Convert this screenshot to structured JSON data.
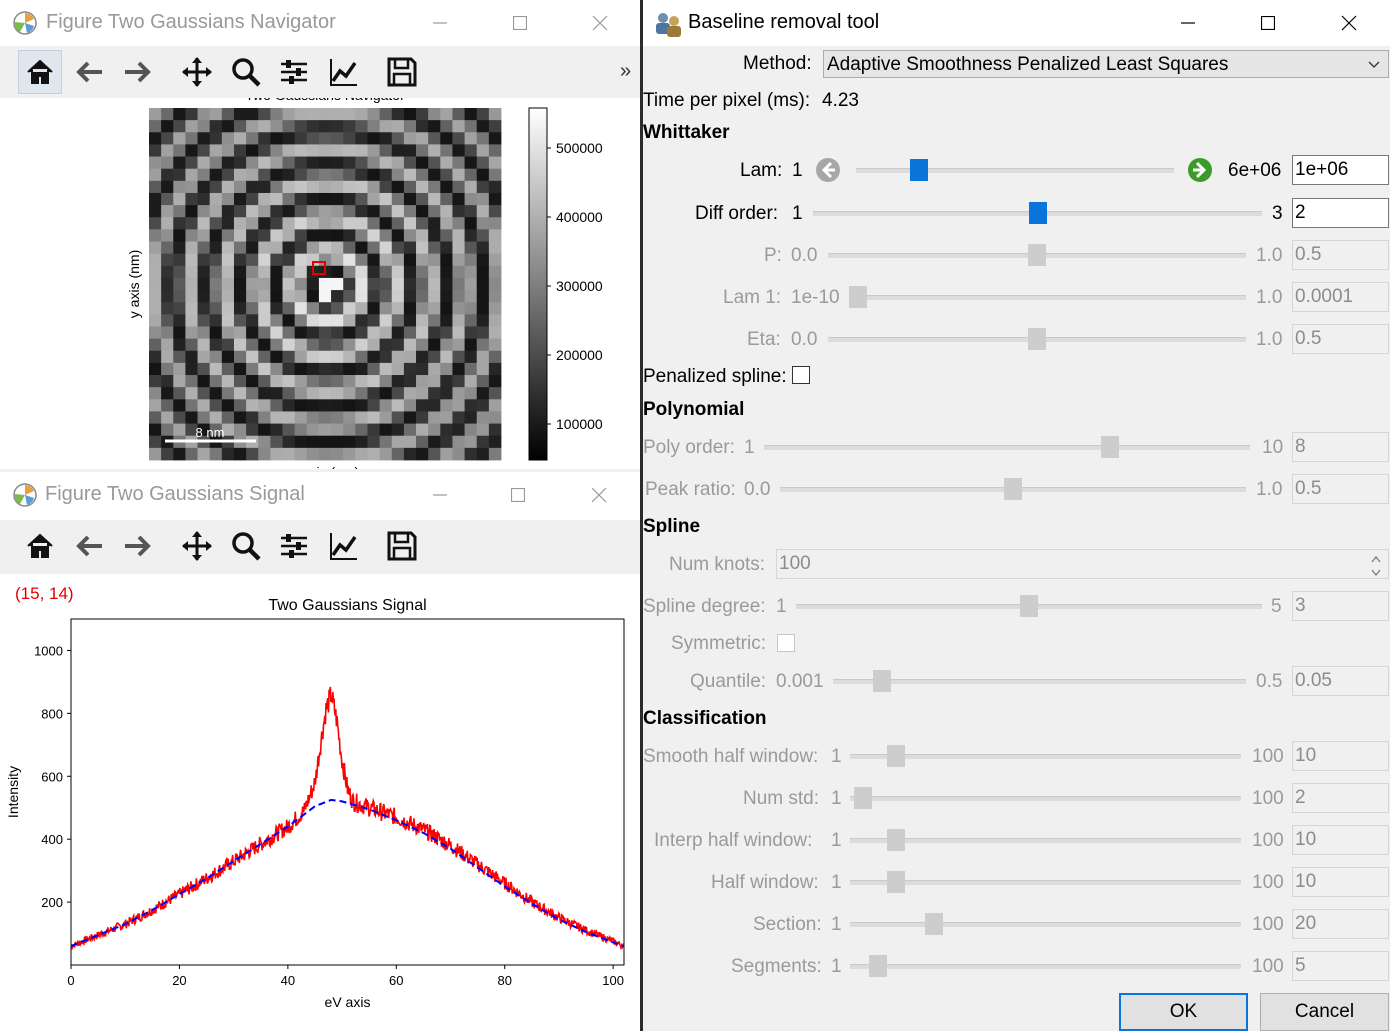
{
  "navigator": {
    "title": "Figure Two Gaussians Navigator",
    "plot_title": "Two Gaussians Navigator",
    "ylabel": "y axis (nm)",
    "xlabel": "x axis (nm)",
    "scalebar": "8 nm",
    "colorbar_ticks": [
      "500000",
      "400000",
      "300000",
      "200000",
      "100000"
    ],
    "more": "»",
    "toolbar": [
      "home-icon",
      "back-arrow-icon",
      "forward-arrow-icon",
      "pan-icon",
      "zoom-icon",
      "configure-subplots-icon",
      "edit-axis-icon",
      "save-icon"
    ]
  },
  "signal": {
    "title": "Figure Two Gaussians Signal",
    "coords": "(15, 14)",
    "toolbar": [
      "home-icon",
      "back-arrow-icon",
      "forward-arrow-icon",
      "pan-icon",
      "zoom-icon",
      "configure-subplots-icon",
      "edit-axis-icon",
      "save-icon"
    ]
  },
  "chart_data": {
    "type": "line",
    "title": "Two Gaussians Signal",
    "xlabel": "eV axis",
    "ylabel": "Intensity",
    "xlim": [
      0,
      102
    ],
    "ylim": [
      0,
      1100
    ],
    "xticks": [
      "0",
      "20",
      "40",
      "60",
      "80",
      "100"
    ],
    "yticks": [
      "200",
      "400",
      "600",
      "800",
      "1000"
    ],
    "grid": false,
    "series": [
      {
        "style": "solid",
        "color": "#ff0000",
        "x": [
          0,
          5,
          10,
          15,
          20,
          25,
          30,
          35,
          40,
          43,
          45,
          46,
          47,
          48,
          49,
          50,
          51,
          52,
          55,
          60,
          65,
          70,
          75,
          80,
          85,
          90,
          95,
          100,
          102
        ],
        "y": [
          60,
          95,
          130,
          175,
          225,
          275,
          330,
          385,
          440,
          490,
          580,
          700,
          810,
          860,
          780,
          650,
          560,
          520,
          500,
          470,
          430,
          380,
          320,
          260,
          200,
          150,
          110,
          75,
          60
        ]
      },
      {
        "style": "dashed",
        "color": "#0000ff",
        "x": [
          0,
          5,
          10,
          15,
          20,
          25,
          30,
          35,
          40,
          45,
          48,
          50,
          55,
          60,
          65,
          70,
          75,
          80,
          85,
          90,
          95,
          100,
          102
        ],
        "y": [
          60,
          95,
          130,
          175,
          225,
          275,
          330,
          385,
          440,
          505,
          525,
          520,
          495,
          460,
          420,
          370,
          310,
          250,
          195,
          145,
          105,
          72,
          60
        ]
      }
    ]
  },
  "tool": {
    "title": "Baseline removal tool",
    "method_label": "Method:",
    "method_value": "Adaptive Smoothness Penalized Least Squares",
    "time_label": "Time per pixel (ms):",
    "time_value": "4.23",
    "whittaker_heading": "Whittaker",
    "lam": {
      "label": "Lam:",
      "min": "1",
      "max": "6e+06",
      "value": "1e+06",
      "pos": 0.18
    },
    "diff_order": {
      "label": "Diff order:",
      "min": "1",
      "max": "3",
      "value": "2",
      "pos": 0.5
    },
    "p": {
      "label": "P:",
      "min": "0.0",
      "max": "1.0",
      "value": "0.5",
      "pos": 0.5
    },
    "lam1": {
      "label": "Lam 1:",
      "min": "1e-10",
      "max": "1.0",
      "value": "0.0001",
      "pos": 0.0
    },
    "eta": {
      "label": "Eta:",
      "min": "0.0",
      "max": "1.0",
      "value": "0.5",
      "pos": 0.5
    },
    "penalized_spline_label": "Penalized spline:",
    "polynomial_heading": "Polynomial",
    "poly_order": {
      "label": "Poly order:",
      "min": "1",
      "max": "10",
      "value": "8",
      "pos": 0.72
    },
    "peak_ratio": {
      "label": "Peak ratio:",
      "min": "0.0",
      "max": "1.0",
      "value": "0.5",
      "pos": 0.5
    },
    "spline_heading": "Spline",
    "num_knots_label": "Num knots:",
    "num_knots_value": "100",
    "spline_degree": {
      "label": "Spline degree:",
      "min": "1",
      "max": "5",
      "value": "3",
      "pos": 0.5
    },
    "symmetric_label": "Symmetric:",
    "quantile": {
      "label": "Quantile:",
      "min": "0.001",
      "max": "0.5",
      "value": "0.05",
      "pos": 0.1
    },
    "classification_heading": "Classification",
    "smooth_half_window": {
      "label": "Smooth half window:",
      "min": "1",
      "max": "100",
      "value": "10",
      "pos": 0.1
    },
    "num_std": {
      "label": "Num std:",
      "min": "1",
      "max": "100",
      "value": "2",
      "pos": 0.01
    },
    "interp_half_window": {
      "label": "Interp half window:",
      "min": "1",
      "max": "100",
      "value": "10",
      "pos": 0.1
    },
    "half_window": {
      "label": "Half window:",
      "min": "1",
      "max": "100",
      "value": "10",
      "pos": 0.1
    },
    "section": {
      "label": "Section:",
      "min": "1",
      "max": "100",
      "value": "20",
      "pos": 0.2
    },
    "segments": {
      "label": "Segments:",
      "min": "1",
      "max": "100",
      "value": "5",
      "pos": 0.05
    },
    "ok_label": "OK",
    "cancel_label": "Cancel"
  }
}
